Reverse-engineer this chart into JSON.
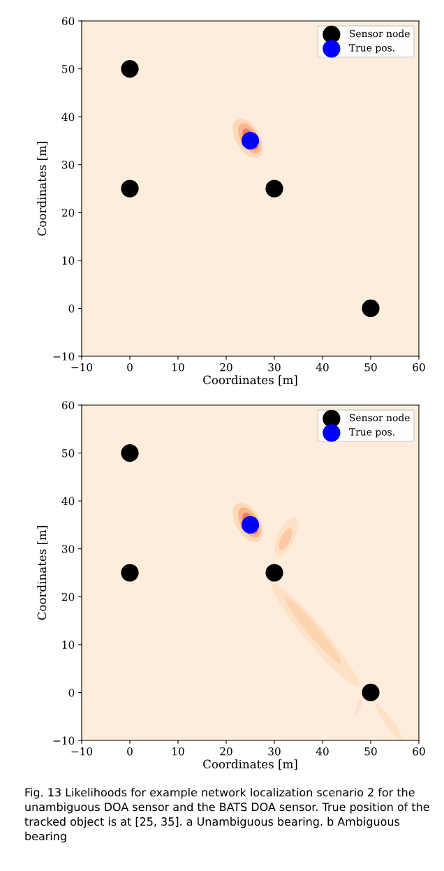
{
  "chart_data": [
    {
      "type": "scatter",
      "xlabel": "Coordinates [m]",
      "ylabel": "Coordinates [m]",
      "xlim": [
        -10,
        60
      ],
      "ylim": [
        -10,
        60
      ],
      "xticks": [
        {
          "value": -10,
          "label": "−10"
        },
        0,
        10,
        20,
        30,
        40,
        50,
        60
      ],
      "yticks": [
        {
          "value": -10,
          "label": "−10"
        },
        0,
        10,
        20,
        30,
        40,
        50,
        60
      ],
      "series": [
        {
          "name": "Sensor node",
          "color": "#000000",
          "x": [
            0,
            0,
            30,
            50
          ],
          "values": [
            50,
            25,
            25,
            0
          ]
        },
        {
          "name": "True pos.",
          "color": "#0000ff",
          "x": [
            25
          ],
          "values": [
            35
          ]
        }
      ],
      "marker": "circle",
      "legend": "top right",
      "grid": false
    },
    {
      "type": "scatter",
      "xlabel": "Coordinates [m]",
      "ylabel": "Coordinates [m]",
      "xlim": [
        -10,
        60
      ],
      "ylim": [
        -10,
        60
      ],
      "xticks": [
        {
          "value": -10,
          "label": "−10"
        },
        0,
        10,
        20,
        30,
        40,
        50,
        60
      ],
      "yticks": [
        {
          "value": -10,
          "label": "−10"
        },
        0,
        10,
        20,
        30,
        40,
        50,
        60
      ],
      "series": [
        {
          "name": "Sensor node",
          "color": "#000000",
          "x": [
            0,
            0,
            30,
            50
          ],
          "values": [
            50,
            25,
            25,
            0
          ]
        },
        {
          "name": "True pos.",
          "color": "#0000ff",
          "x": [
            25
          ],
          "values": [
            35
          ]
        }
      ],
      "marker": "circle",
      "legend": "top right",
      "grid": false,
      "annotations": [
        "Fig. 13 Likelihoods for example network localization scenario 2 for the unambiguous DOA sensor and the BATS DOA sensor. True position of the tracked object is at [25, 35]. a Unambiguous bearing. b Ambiguous bearing"
      ]
    }
  ]
}
